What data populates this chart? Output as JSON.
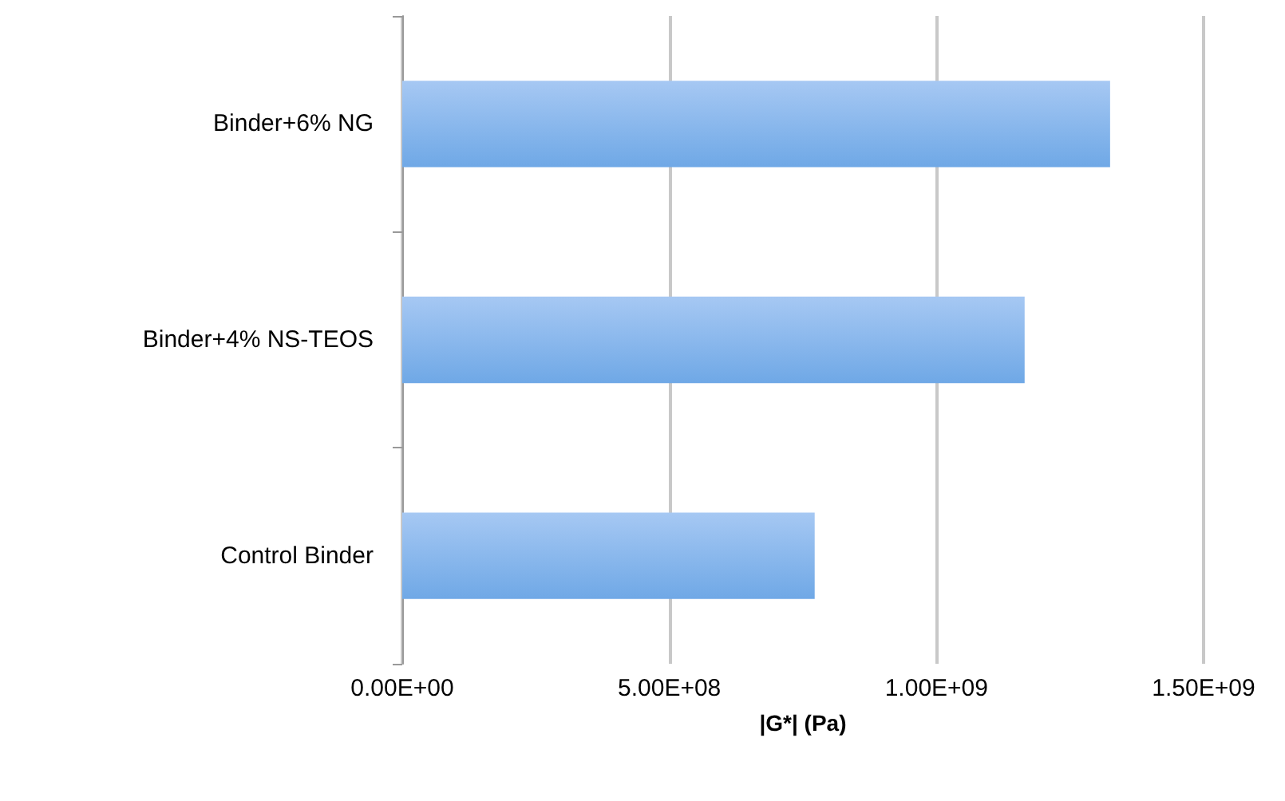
{
  "chart_data": {
    "type": "bar",
    "orientation": "horizontal",
    "xlabel": "|G*| (Pa)",
    "categories": [
      "Binder+6% NG",
      "Binder+4% NS-TEOS",
      "Control Binder"
    ],
    "values": [
      1325000000.0,
      1165000000.0,
      772000000.0
    ],
    "color": "#6fa8e6",
    "xlim": [
      0,
      1500000000.0
    ],
    "xticks": [
      {
        "value": 0,
        "label": "0.00E+00"
      },
      {
        "value": 500000000.0,
        "label": "5.00E+08"
      },
      {
        "value": 1000000000.0,
        "label": "1.00E+09"
      },
      {
        "value": 1500000000.0,
        "label": "1.50E+09"
      }
    ],
    "grid": "x"
  }
}
